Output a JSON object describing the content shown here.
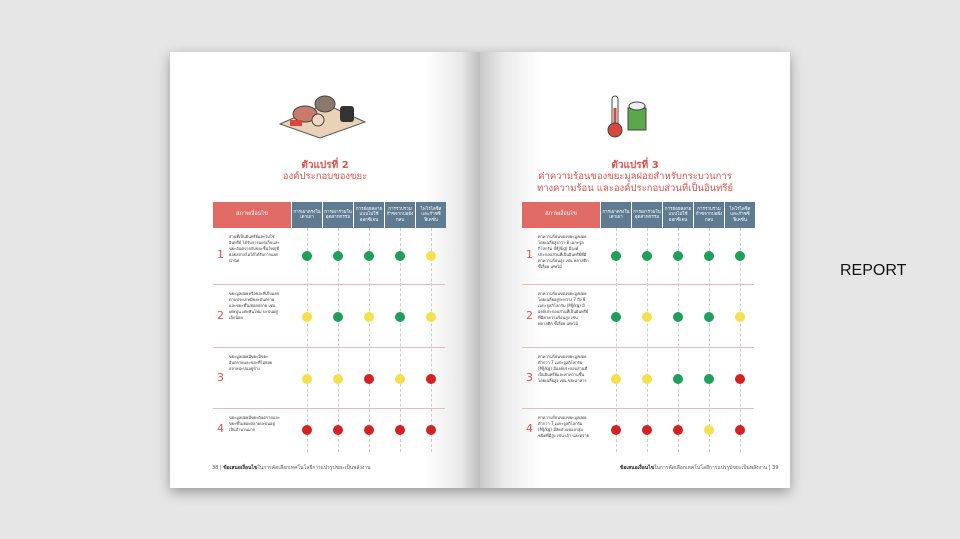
{
  "label": "REPORT",
  "colors": {
    "good": "#1fa05a",
    "medium": "#f5e04f",
    "poor": "#d42222",
    "header": "#5f7b92",
    "condition_header": "#e06a64"
  },
  "columns": [
    "สภาพเงื่อนไข",
    "การเผาตรงในเตาเผา",
    "การเผาร่วมในอุตสาหกรรม",
    "การย่อยสลายแบบไม่ใช้ออกซิเจน",
    "การรวบรวมก๊าซจากบ่อฝังกลบ",
    "ไพโรไลซิสและก๊าซซิฟิเคชั่น"
  ],
  "left": {
    "title": "ตัวแปรที่ 2",
    "subtitle": "องค์ประกอบของขยะ",
    "page_number": "38",
    "footer_bold": "ข้อเสนอเงื่อนไข",
    "footer": "ในการคัดเลือกเทคโนโลยีการแปรรูปขยะเป็นพลังงาน",
    "rows": [
      {
        "n": "1",
        "text": "ส่วนที่เป็นอินทรีย์และไม่ใช่อินทรีย์ ได้รับการแยกเก็บและขยะอันตรายกับขยะชิ้นใหญ่ที่ย่อยสลายไม่ได้ได้รับการแยกนำนัด",
        "ratings": [
          "good",
          "good",
          "good",
          "good",
          "medium"
        ]
      },
      {
        "n": "2",
        "text": "ขยะมูลฝอยหรือขยะที่เก็บแยกตามประเภทมีขยะอันตรายและขยะที่ไม่ย่อยสลาย เช่น เศษปูน เศษหินโฟม ปะปนอยู่เล็กน้อย",
        "ratings": [
          "medium",
          "good",
          "medium",
          "good",
          "medium"
        ]
      },
      {
        "n": "3",
        "text": "ขยะมูลฝอยมีขยะมีขยะอันตรายและขยะที่ไม่ย่อยสลายปะปนอยู่บ้าง",
        "ratings": [
          "medium",
          "medium",
          "poor",
          "medium",
          "poor"
        ]
      },
      {
        "n": "4",
        "text": "ขยะมูลฝอยมีขยะอันตรายและขยะที่ไม่ย่อยสลายปะปนอยู่เป็นจำนวนมาก",
        "ratings": [
          "poor",
          "poor",
          "poor",
          "poor",
          "poor"
        ]
      }
    ]
  },
  "right": {
    "title": "ตัวแปรที่ 3",
    "subtitle": "ค่าความร้อนของขยะมูลฝอยสำหรับกระบวนการ",
    "subtitle2": "ทางความร้อน และองค์ประกอบส่วนที่เป็นอินทรีย์",
    "page_number": "39",
    "footer_bold": "ข้อเสนอเงื่อนไข",
    "footer": "ในการคัดเลือกเทคโนโลยีการแปรรูปขยะเป็นพลังงาน",
    "rows": [
      {
        "n": "1",
        "text": "ค่าความร้อนของขยะมูลฝอยโดยเฉลี่ยสูงกว่า 8 เมกะจูลกิโลกรัม (MJ/kg) มีองค์ประกอบส่วนที่เป็นอินทรีย์ที่มีค่าความร้อนสูง เช่น พลาสติก ขี้เลื่อย เศษไม้",
        "ratings": [
          "good",
          "good",
          "good",
          "good",
          "good"
        ]
      },
      {
        "n": "2",
        "text": "ค่าความร้อนของขยะมูลฝอยโดยเฉลี่ยอยู่ระหว่าง 7 ถึง 8 เมกะจูลกิโลกรัม (MJ/kg) มีองค์ประกอบส่วนที่เป็นอินทรีย์ที่มีค่าความร้อนสูง เช่น พลาสติก ขี้เลื่อย เศษไม้",
        "ratings": [
          "good",
          "medium",
          "good",
          "good",
          "medium"
        ]
      },
      {
        "n": "3",
        "text": "ค่าความร้อนของขยะมูลฝอยต่ำกว่า 7 เมกะจูลกิโลกรัม (MJ/kg) มีองค์ประกอบส่วนที่เป็นอินทรีย์และค่าความชื้นโดยเฉลี่ยสูง เช่น ขยะอาหาร",
        "ratings": [
          "medium",
          "medium",
          "good",
          "good",
          "poor"
        ]
      },
      {
        "n": "4",
        "text": "ค่าความร้อนของขยะมูลฝอยต่ำกว่า 7 เมกะจูลกิโลกรัม (MJ/kg) มีสัดส่วนของกลุ่มชนิดที่มีสูง เช่น เถ้า และทราย",
        "ratings": [
          "poor",
          "poor",
          "poor",
          "medium",
          "poor"
        ]
      }
    ]
  }
}
